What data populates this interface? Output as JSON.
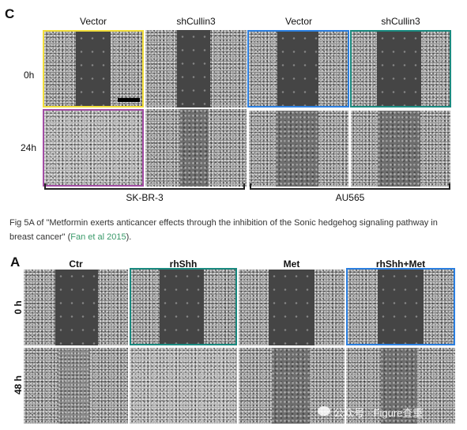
{
  "figure_c": {
    "panel_letter": "C",
    "columns": [
      "Vector",
      "shCullin3",
      "Vector",
      "shCullin3"
    ],
    "rows": [
      "0h",
      "24h"
    ],
    "cell_lines": [
      "SK-BR-3",
      "AU565"
    ]
  },
  "caption": {
    "text_before_link": "Fig 5A of \"Metformin exerts anticancer effects through the inhibition of the Sonic hedgehog signaling pathway in breast cancer\" (",
    "link_text": "Fan et al 2015",
    "text_after_link": ")."
  },
  "figure_a": {
    "panel_letter": "A",
    "columns": [
      "Ctr",
      "rhShh",
      "Met",
      "rhShh+Met"
    ],
    "rows": [
      "0 h",
      "48 h"
    ]
  },
  "watermark": {
    "text": "公众号 · Figure查重"
  },
  "colors": {
    "highlight_yellow": "#f2de3a",
    "highlight_purple": "#a34da5",
    "highlight_blue": "#2b7fe0",
    "highlight_teal": "#1a8a80",
    "link_green": "#3a9a6a"
  }
}
